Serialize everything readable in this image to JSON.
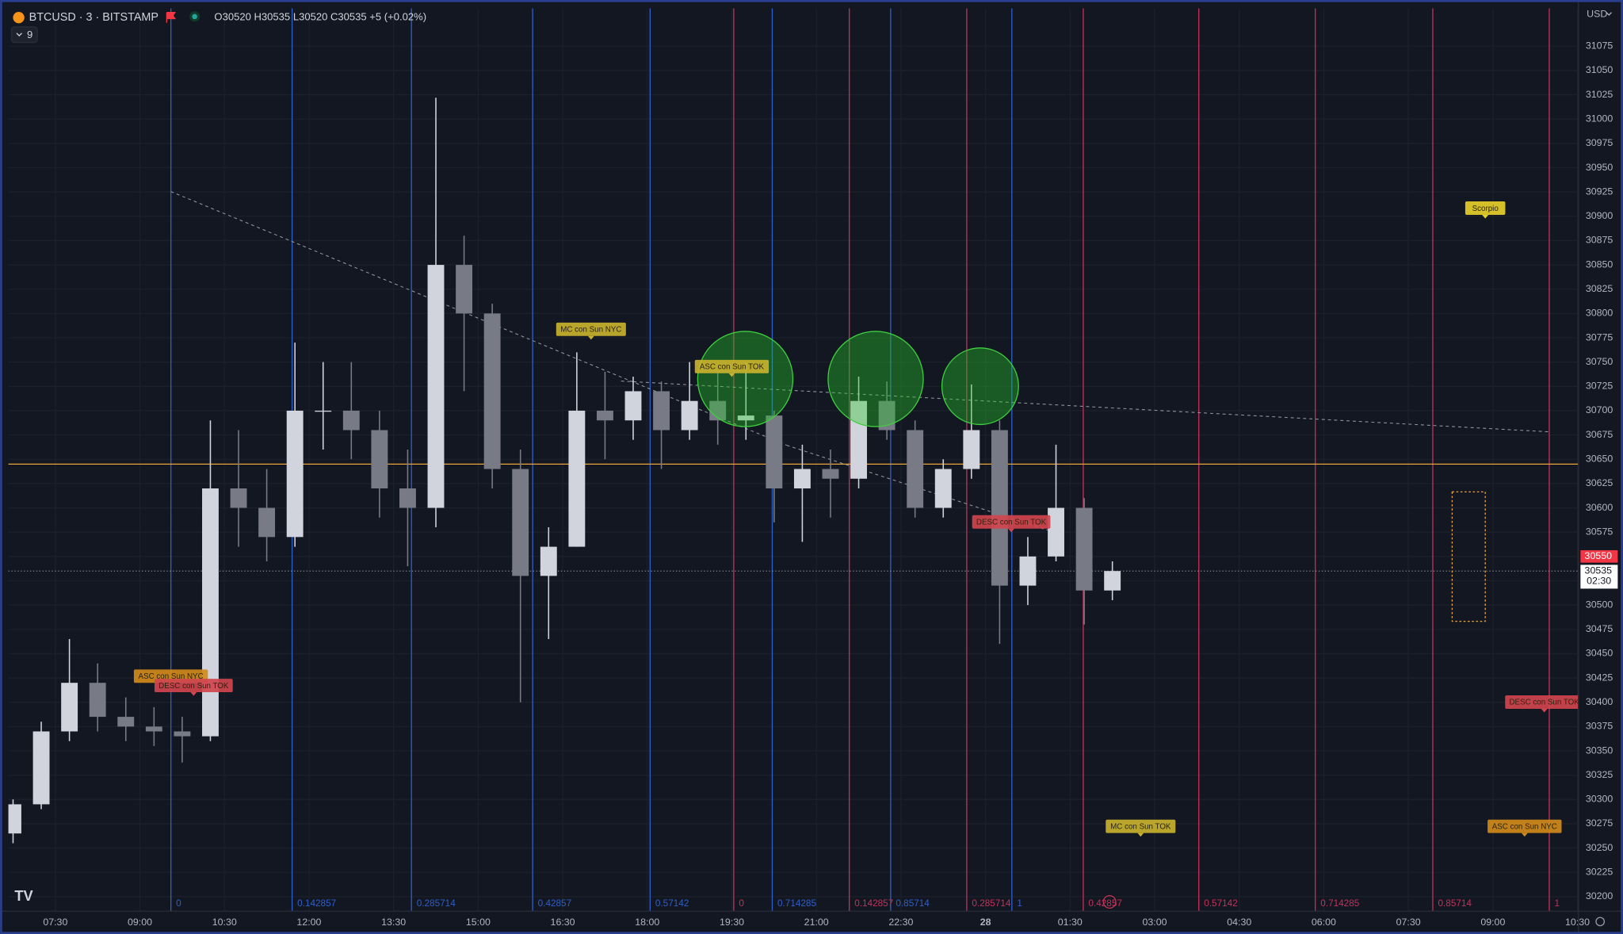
{
  "header": {
    "symbol": "BTCUSD · 3 · BITSTAMP",
    "ohlc": "O30520 H30535 L30520 C30535 +5 (+0.02%)",
    "indicator_count": "9",
    "currency": "USD"
  },
  "chart_data": {
    "type": "candlestick",
    "x": [
      45,
      75,
      105,
      135,
      165,
      195,
      225,
      255,
      285,
      315,
      345,
      375,
      405,
      435,
      465,
      495,
      525,
      555,
      585,
      615,
      645,
      675,
      705,
      735,
      765,
      795,
      825,
      855,
      885,
      915,
      945,
      975,
      1005,
      1035,
      1065,
      1095,
      1125,
      1155,
      1185,
      1215
    ],
    "open": [
      30265,
      30295,
      30370,
      30420,
      30385,
      30375,
      30370,
      30365,
      30620,
      30600,
      30570,
      30700,
      30700,
      30680,
      30620,
      30600,
      30850,
      30800,
      30640,
      30530,
      30560,
      30700,
      30690,
      30720,
      30680,
      30710,
      30690,
      30695,
      30620,
      30640,
      30630,
      30710,
      30680,
      30600,
      30640,
      30680,
      30520,
      30550,
      30600,
      30515
    ],
    "high": [
      30300,
      30380,
      30465,
      30440,
      30405,
      30395,
      30385,
      30690,
      30680,
      30640,
      30770,
      30750,
      30750,
      30700,
      30660,
      31022,
      30880,
      30810,
      30660,
      30580,
      30760,
      30740,
      30735,
      30730,
      30750,
      30740,
      30750,
      30700,
      30665,
      30660,
      30735,
      30730,
      30690,
      30650,
      30727,
      30690,
      30570,
      30665,
      30610,
      30545
    ],
    "low": [
      30255,
      30290,
      30360,
      30370,
      30360,
      30355,
      30338,
      30360,
      30560,
      30545,
      30560,
      30660,
      30650,
      30590,
      30540,
      30580,
      30720,
      30620,
      30400,
      30465,
      30560,
      30650,
      30670,
      30640,
      30670,
      30665,
      30670,
      30585,
      30565,
      30590,
      30620,
      30670,
      30590,
      30590,
      30630,
      30460,
      30500,
      30545,
      30480,
      30505
    ],
    "close": [
      30295,
      30370,
      30420,
      30385,
      30375,
      30370,
      30365,
      30620,
      30600,
      30570,
      30700,
      30700,
      30680,
      30620,
      30600,
      30850,
      30800,
      30640,
      30530,
      30560,
      30700,
      30690,
      30720,
      30680,
      30710,
      30690,
      30695,
      30620,
      30640,
      30630,
      30710,
      30680,
      30600,
      30640,
      30680,
      30520,
      30550,
      30600,
      30515,
      30535
    ],
    "up_color": "#d1d4dc",
    "down_color": "#787b86",
    "xlim": [
      40,
      1711
    ],
    "ylim": [
      30185,
      31114
    ],
    "grid": true,
    "xticks": [
      {
        "value": 90,
        "label": "07:30"
      },
      {
        "value": 180,
        "label": "09:00"
      },
      {
        "value": 270,
        "label": "10:30"
      },
      {
        "value": 360,
        "label": "12:00"
      },
      {
        "value": 450,
        "label": "13:30"
      },
      {
        "value": 540,
        "label": "15:00"
      },
      {
        "value": 630,
        "label": "16:30"
      },
      {
        "value": 720,
        "label": "18:00"
      },
      {
        "value": 810,
        "label": "19:30"
      },
      {
        "value": 900,
        "label": "21:00"
      },
      {
        "value": 990,
        "label": "22:30"
      },
      {
        "value": 1080,
        "label": "28"
      },
      {
        "value": 1170,
        "label": "01:30"
      },
      {
        "value": 1260,
        "label": "03:00"
      },
      {
        "value": 1350,
        "label": "04:30"
      },
      {
        "value": 1440,
        "label": "06:00"
      },
      {
        "value": 1530,
        "label": "07:30"
      },
      {
        "value": 1620,
        "label": "09:00"
      },
      {
        "value": 1710,
        "label": "10:30"
      }
    ],
    "yticks": [
      30200,
      30225,
      30250,
      30275,
      30300,
      30325,
      30350,
      30375,
      30400,
      30425,
      30450,
      30475,
      30500,
      30525,
      30550,
      30575,
      30600,
      30625,
      30650,
      30675,
      30700,
      30725,
      30750,
      30775,
      30800,
      30825,
      30850,
      30875,
      30900,
      30925,
      30950,
      30975,
      31000,
      31025,
      31050,
      31075
    ],
    "hlines": [
      {
        "value": 30645,
        "color": "#e8a33a"
      }
    ],
    "current_price": {
      "value": 30535,
      "countdown": "02:30"
    },
    "alert_price": 30550,
    "time_zones": [
      {
        "color": "#2f5fc9",
        "lines": [
          {
            "value": 213,
            "label": "0"
          },
          {
            "value": 342,
            "label": "0.142857"
          },
          {
            "value": 469,
            "label": "0.285714"
          },
          {
            "value": 598,
            "label": "0.42857"
          },
          {
            "value": 723,
            "label": "0.57142"
          },
          {
            "value": 853,
            "label": "0.714285"
          },
          {
            "value": 979,
            "label": "0.85714"
          },
          {
            "value": 1108,
            "label": "1"
          }
        ]
      },
      {
        "color": "#c2335a",
        "lines": [
          {
            "value": 812,
            "label": "0"
          },
          {
            "value": 935,
            "label": "0.142857"
          },
          {
            "value": 1060,
            "label": "0.285714"
          },
          {
            "value": 1184,
            "label": "0.42857"
          },
          {
            "value": 1307,
            "label": "0.57142"
          },
          {
            "value": 1431,
            "label": "0.714285"
          },
          {
            "value": 1556,
            "label": "0.85714"
          },
          {
            "value": 1680,
            "label": "1"
          }
        ]
      }
    ],
    "annotations": [
      {
        "text": "MC con Sun NYC",
        "color": "#c9b22e"
      },
      {
        "text": "ASC con Sun TOK",
        "color": "#c9b22e"
      },
      {
        "text": "ASC con Sun NYC",
        "color": "#d08a1a"
      },
      {
        "text": "DESC con Sun TOK",
        "color": "#d0454e"
      },
      {
        "text": "DESC con Sun TOK",
        "color": "#d0454e"
      },
      {
        "text": "Scorpio",
        "color": "#e6cf2a"
      },
      {
        "text": "DESC con Sun TOK",
        "color": "#d0454e"
      },
      {
        "text": "MC con Sun TOK",
        "color": "#c9b22e"
      },
      {
        "text": "ASC con Sun NYC",
        "color": "#d08a1a"
      }
    ]
  }
}
